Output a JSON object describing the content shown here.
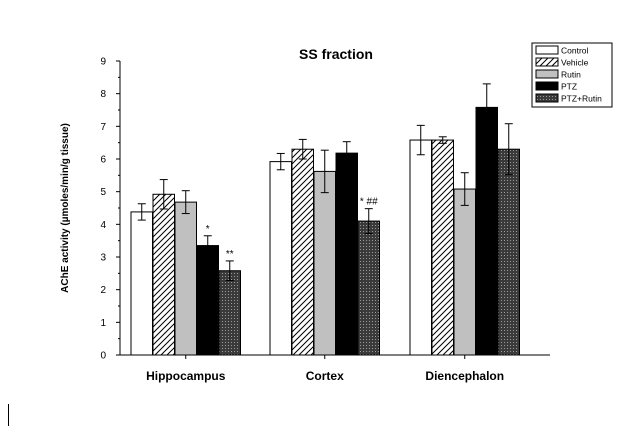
{
  "chart_data": {
    "type": "bar",
    "title": "SS fraction",
    "xlabel": "",
    "ylabel": "AChE activity (µmoles/min/g tissue)",
    "ylim": [
      0,
      9
    ],
    "yticks": [
      0,
      1,
      2,
      3,
      4,
      5,
      6,
      7,
      8,
      9
    ],
    "categories": [
      "Hippocampus",
      "Cortex",
      "Diencephalon"
    ],
    "series": [
      {
        "name": "Control",
        "values": [
          4.38,
          5.92,
          6.58
        ],
        "errors": [
          0.25,
          0.25,
          0.45
        ],
        "fill": "#ffffff",
        "pattern": "none"
      },
      {
        "name": "Vehicle",
        "values": [
          4.92,
          6.3,
          6.58
        ],
        "errors": [
          0.45,
          0.3,
          0.1
        ],
        "fill": "#ffffff",
        "pattern": "hatch"
      },
      {
        "name": "Rutin",
        "values": [
          4.68,
          5.62,
          5.08
        ],
        "errors": [
          0.35,
          0.65,
          0.5
        ],
        "fill": "#c0c0c0",
        "pattern": "none"
      },
      {
        "name": "PTZ",
        "values": [
          3.35,
          6.18,
          7.58
        ],
        "errors": [
          0.3,
          0.35,
          0.72
        ],
        "fill": "#000000",
        "pattern": "none"
      },
      {
        "name": "PTZ+Rutin",
        "values": [
          2.58,
          4.1,
          6.3
        ],
        "errors": [
          0.3,
          0.38,
          0.78
        ],
        "fill": "#555555",
        "pattern": "dots"
      }
    ],
    "annotations": [
      {
        "category": "Hippocampus",
        "series": "PTZ",
        "text": "*"
      },
      {
        "category": "Hippocampus",
        "series": "PTZ+Rutin",
        "text": "**"
      },
      {
        "category": "Cortex",
        "series": "PTZ+Rutin",
        "text": "*  ##"
      }
    ],
    "legend_position": "top-right",
    "grid": false
  }
}
